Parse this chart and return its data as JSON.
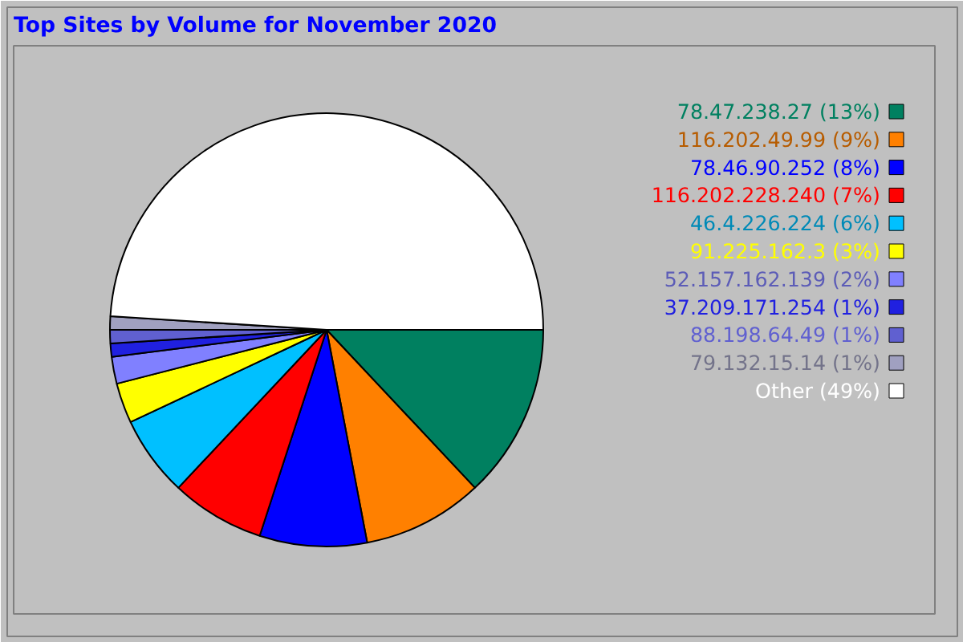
{
  "chart_data": {
    "type": "pie",
    "title": "Top Sites by Volume for November 2020",
    "categories": [
      "78.47.238.27",
      "116.202.49.99",
      "78.46.90.252",
      "116.202.228.240",
      "46.4.226.224",
      "91.225.162.3",
      "52.157.162.139",
      "37.209.171.254",
      "88.198.64.49",
      "79.132.15.14",
      "Other"
    ],
    "values": [
      13,
      9,
      8,
      7,
      6,
      3,
      2,
      1,
      1,
      1,
      49
    ],
    "value_labels": [
      "(13%)",
      "(9%)",
      "(8%)",
      "(7%)",
      "(6%)",
      "(3%)",
      "(2%)",
      "(1%)",
      "(1%)",
      "(1%)",
      "(49%)"
    ],
    "colors": [
      "#008060",
      "#ff8000",
      "#0000ff",
      "#ff0000",
      "#00c0ff",
      "#ffff00",
      "#8080ff",
      "#2020e0",
      "#6060d0",
      "#a0a0c0",
      "#ffffff"
    ],
    "legend": "right"
  }
}
